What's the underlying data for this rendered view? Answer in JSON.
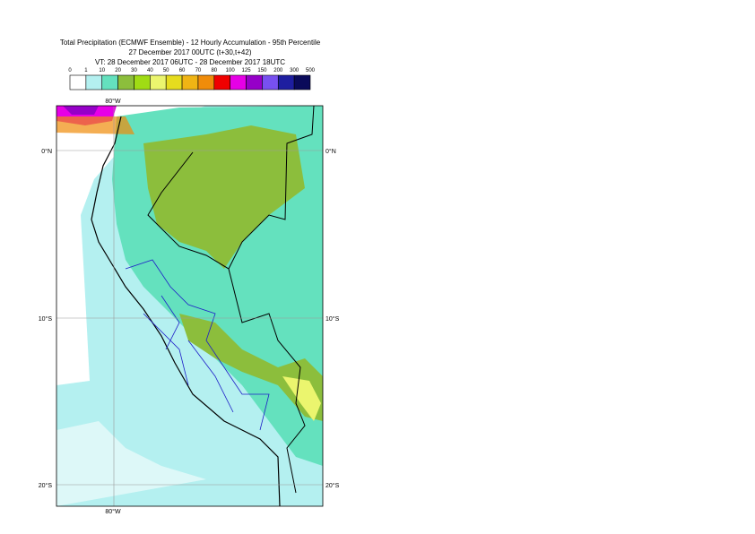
{
  "header": {
    "title": "Total Precipitation (ECMWF Ensemble) - 12 Hourly Accumulation - 95th Percentile",
    "base_time": "27 December 2017 00UTC (t+30,t+42)",
    "valid_time": "VT: 28 December 2017 06UTC - 28 December 2017 18UTC"
  },
  "legend": {
    "labels": [
      0,
      1,
      10,
      20,
      30,
      40,
      50,
      60,
      70,
      80,
      100,
      125,
      150,
      200,
      300,
      500
    ],
    "colors": [
      "#ffffff",
      "#b4f0f0",
      "#64e1be",
      "#8cbe3c",
      "#a0dc14",
      "#ebf56e",
      "#e6dc1e",
      "#f0b414",
      "#f08c0a",
      "#f00000",
      "#e600e6",
      "#9600c8",
      "#7850f0",
      "#1e1ea0",
      "#0a0a5a"
    ]
  },
  "map": {
    "lon_label": "80°W",
    "lat_labels": [
      "0°N",
      "10°S",
      "20°S"
    ]
  }
}
